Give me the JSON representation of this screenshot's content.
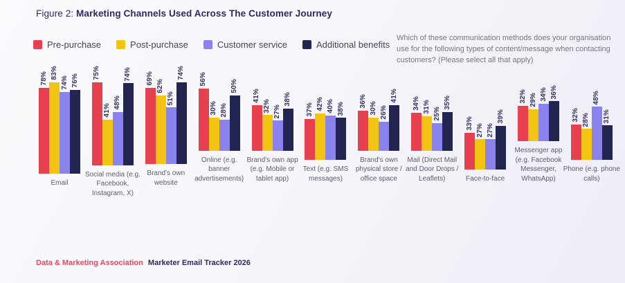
{
  "header": {
    "figure_label": "Figure 2: ",
    "title": "Marketing Channels Used Across The Customer Journey"
  },
  "survey_question": "Which of these communication methods does your organisation use for the following types of content/message when contacting customers? (Please select all that apply)",
  "footer": {
    "source": "Data & Marketing Association",
    "report": "Marketer Email Tracker 2026"
  },
  "colors": {
    "pre_purchase": "#e7404f",
    "post_purchase": "#f2c414",
    "customer_service": "#8a82ed",
    "additional_benefits": "#222550",
    "accent_red": "#e8495b",
    "navy_text": "#2d2a5e"
  },
  "chart_data": {
    "type": "bar",
    "title": "Figure 2: Marketing Channels Used Across The Customer Journey",
    "value_suffix": "%",
    "ylim": [
      0,
      100
    ],
    "grid": false,
    "legend_position": "top-left",
    "value_labels": "rotated-vertical-above-bars",
    "categories": [
      "Email",
      "Social media (e.g. Facebook, Instagram, X)",
      "Brand's own website",
      "Online (e.g. banner advertisements)",
      "Brand's own app (e.g. Mobile or tablet app)",
      "Text (e.g. SMS messages)",
      "Brand's own physical store / office space",
      "Mail (Direct Mail and Door Drops / Leaflets)",
      "Face-to-face",
      "Messenger app (e.g. Facebook Messenger, WhatsApp)",
      "Phone (e.g. phone calls)"
    ],
    "series": [
      {
        "name": "Pre-purchase",
        "color": "#e7404f",
        "values": [
          78,
          75,
          69,
          56,
          41,
          37,
          36,
          34,
          33,
          32,
          32
        ]
      },
      {
        "name": "Post-purchase",
        "color": "#f2c414",
        "values": [
          83,
          41,
          62,
          30,
          32,
          42,
          30,
          31,
          27,
          29,
          28
        ]
      },
      {
        "name": "Customer service",
        "color": "#8a82ed",
        "values": [
          74,
          48,
          51,
          28,
          27,
          40,
          26,
          25,
          27,
          34,
          48
        ]
      },
      {
        "name": "Additional benefits",
        "color": "#222550",
        "values": [
          76,
          74,
          74,
          50,
          38,
          38,
          41,
          35,
          39,
          36,
          31
        ]
      }
    ]
  }
}
